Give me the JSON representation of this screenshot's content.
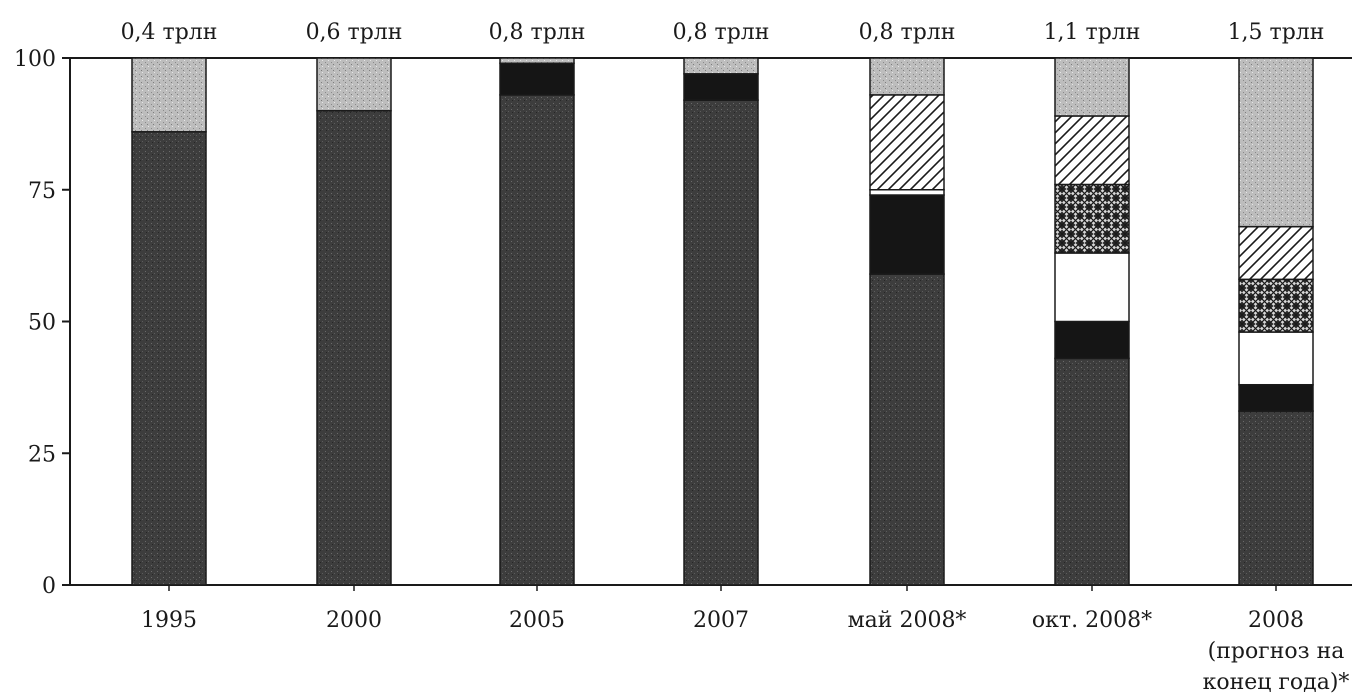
{
  "chart_data": {
    "type": "bar",
    "stacked": true,
    "title": "",
    "xlabel": "",
    "ylabel": "",
    "ylim": [
      0,
      100
    ],
    "yticks": [
      0,
      25,
      50,
      75,
      100
    ],
    "grid": false,
    "categories": [
      [
        "1995"
      ],
      [
        "2000"
      ],
      [
        "2005"
      ],
      [
        "2007"
      ],
      [
        "май 2008*"
      ],
      [
        "окт. 2008*"
      ],
      [
        "2008",
        "(прогноз на",
        "конец года)*"
      ]
    ],
    "totals": [
      "0,4 трлн",
      "0,6 трлн",
      "0,8 трлн",
      "0,8 трлн",
      "0,8 трлн",
      "1,1 трлн",
      "1,5 трлн"
    ],
    "series": [
      {
        "fill": "dark-stipple",
        "values": [
          86,
          90,
          93,
          92,
          59,
          43,
          33
        ]
      },
      {
        "fill": "black",
        "values": [
          0,
          0,
          6,
          5,
          15,
          7,
          5
        ]
      },
      {
        "fill": "white",
        "values": [
          0,
          0,
          0,
          0,
          1,
          13,
          10
        ]
      },
      {
        "fill": "crosshatch",
        "values": [
          0,
          0,
          0,
          0,
          0,
          13,
          10
        ]
      },
      {
        "fill": "diagonal-hatch",
        "values": [
          0,
          0,
          0,
          0,
          18,
          13,
          10
        ]
      },
      {
        "fill": "light-stipple",
        "values": [
          14,
          10,
          1,
          3,
          7,
          11,
          32
        ]
      }
    ],
    "colors": {
      "dark-stipple": "#3d3d3d",
      "black": "#151515",
      "white": "#ffffff",
      "light-stipple": "#b9b9b9",
      "stroke": "#1a1a1a"
    }
  }
}
